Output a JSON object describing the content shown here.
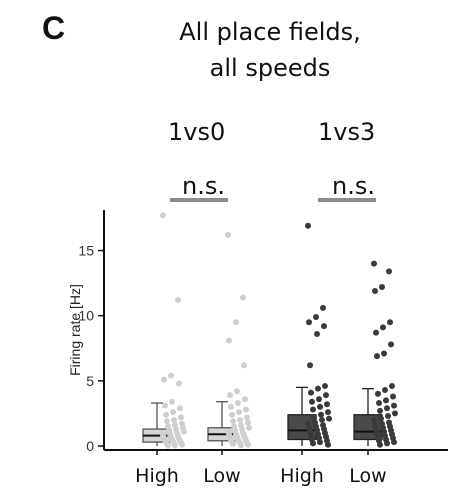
{
  "panel_label": "C",
  "title_line1": "All place fields,",
  "title_line2": "all speeds",
  "comparisons": [
    {
      "label": "1vs0",
      "significance": "n.s."
    },
    {
      "label": "1vs3",
      "significance": "n.s."
    }
  ],
  "colors": {
    "group1": "#d4d4d4",
    "group2": "#4a4a4a",
    "sig_bar": "#8c8c8c",
    "axis": "#111111"
  },
  "chart_data": {
    "type": "box",
    "ylabel": "Firing rate [Hz]",
    "ylim": [
      0,
      18
    ],
    "yticks": [
      0,
      5,
      10,
      15
    ],
    "categories": [
      "High",
      "Low",
      "High",
      "Low"
    ],
    "groups": [
      {
        "comparison": "1vs0",
        "color": "group1",
        "boxes": [
          {
            "label": "High",
            "q1": 0.3,
            "median": 0.8,
            "q3": 1.3,
            "whisker_low": 0,
            "whisker_high": 3.3,
            "points": [
              17.7,
              11.2,
              5.4,
              5.1,
              4.8,
              3.4,
              3.1,
              2.9,
              2.6,
              2.4,
              2.2,
              2.0,
              1.9,
              1.7,
              1.6,
              1.5,
              1.4,
              1.3,
              1.2,
              1.1,
              1.0,
              0.9,
              0.8,
              0.75,
              0.7,
              0.6,
              0.55,
              0.5,
              0.45,
              0.4,
              0.35,
              0.3,
              0.25,
              0.2,
              0.15,
              0.1,
              0.05,
              0.02
            ]
          },
          {
            "label": "Low",
            "q1": 0.4,
            "median": 0.9,
            "q3": 1.4,
            "whisker_low": 0,
            "whisker_high": 3.4,
            "points": [
              16.2,
              11.4,
              9.5,
              8.1,
              6.2,
              4.2,
              3.9,
              3.6,
              3.3,
              3.0,
              2.8,
              2.6,
              2.4,
              2.2,
              2.0,
              1.9,
              1.8,
              1.6,
              1.5,
              1.4,
              1.3,
              1.2,
              1.1,
              1.0,
              0.9,
              0.85,
              0.8,
              0.7,
              0.65,
              0.6,
              0.5,
              0.45,
              0.4,
              0.35,
              0.3,
              0.25,
              0.2,
              0.15,
              0.1,
              0.05
            ]
          }
        ]
      },
      {
        "comparison": "1vs3",
        "color": "group2",
        "boxes": [
          {
            "label": "High",
            "q1": 0.5,
            "median": 1.2,
            "q3": 2.4,
            "whisker_low": 0,
            "whisker_high": 4.5,
            "points": [
              16.9,
              10.6,
              9.9,
              9.5,
              9.2,
              8.6,
              6.2,
              4.6,
              4.4,
              4.1,
              3.9,
              3.6,
              3.4,
              3.2,
              3.0,
              2.8,
              2.6,
              2.4,
              2.2,
              2.1,
              2.0,
              1.8,
              1.7,
              1.6,
              1.5,
              1.4,
              1.3,
              1.2,
              1.1,
              1.0,
              0.9,
              0.8,
              0.7,
              0.6,
              0.5,
              0.4,
              0.3,
              0.2,
              0.1
            ]
          },
          {
            "label": "Low",
            "q1": 0.5,
            "median": 1.1,
            "q3": 2.4,
            "whisker_low": 0,
            "whisker_high": 4.4,
            "points": [
              14.0,
              13.4,
              12.2,
              11.9,
              9.5,
              9.1,
              8.7,
              7.8,
              7.1,
              6.9,
              4.6,
              4.3,
              4.0,
              3.8,
              3.5,
              3.3,
              3.1,
              2.9,
              2.7,
              2.5,
              2.3,
              2.1,
              2.0,
              1.8,
              1.7,
              1.6,
              1.5,
              1.4,
              1.3,
              1.2,
              1.1,
              1.0,
              0.9,
              0.8,
              0.7,
              0.6,
              0.5,
              0.4,
              0.3,
              0.2,
              0.1
            ]
          }
        ]
      }
    ]
  }
}
